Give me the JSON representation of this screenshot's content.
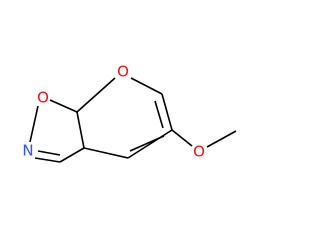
{
  "atoms": [
    {
      "label": "O"
    },
    {
      "label": "O"
    },
    {
      "label": "N"
    },
    {
      "label": "O"
    }
  ]
}
